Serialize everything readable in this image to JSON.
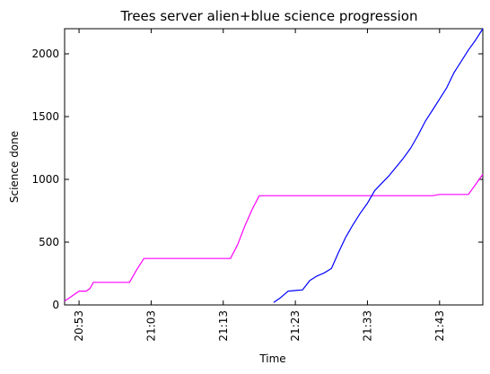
{
  "chart_data": {
    "type": "line",
    "title": "Trees server alien+blue science progression",
    "xlabel": "Time",
    "ylabel": "Science done",
    "x_unit": "clock time (hh:mm)",
    "xlim": [
      "20:51",
      "21:49"
    ],
    "ylim": [
      0,
      2200
    ],
    "x_ticks": [
      "20:53",
      "21:03",
      "21:13",
      "21:23",
      "21:33",
      "21:43"
    ],
    "y_ticks": [
      0,
      500,
      1000,
      1500,
      2000
    ],
    "grid": false,
    "legend": "none",
    "series": [
      {
        "color": "#ff00ff",
        "points": [
          [
            "20:51",
            30
          ],
          [
            "20:52",
            70
          ],
          [
            "20:53",
            110
          ],
          [
            "20:54",
            110
          ],
          [
            "20:54:30",
            130
          ],
          [
            "20:55",
            180
          ],
          [
            "20:57",
            180
          ],
          [
            "21:00",
            180
          ],
          [
            "21:01",
            280
          ],
          [
            "21:02",
            370
          ],
          [
            "21:05",
            370
          ],
          [
            "21:10",
            370
          ],
          [
            "21:14",
            370
          ],
          [
            "21:15",
            480
          ],
          [
            "21:16",
            630
          ],
          [
            "21:17",
            760
          ],
          [
            "21:18",
            870
          ],
          [
            "21:25",
            870
          ],
          [
            "21:35",
            870
          ],
          [
            "21:42",
            870
          ],
          [
            "21:43",
            880
          ],
          [
            "21:47",
            880
          ],
          [
            "21:48",
            960
          ],
          [
            "21:49",
            1040
          ]
        ]
      },
      {
        "color": "#0000ff",
        "points": [
          [
            "21:20",
            20
          ],
          [
            "21:21",
            60
          ],
          [
            "21:22",
            110
          ],
          [
            "21:23",
            115
          ],
          [
            "21:24",
            120
          ],
          [
            "21:25",
            195
          ],
          [
            "21:26",
            230
          ],
          [
            "21:27",
            255
          ],
          [
            "21:28",
            290
          ],
          [
            "21:29",
            420
          ],
          [
            "21:30",
            540
          ],
          [
            "21:31",
            640
          ],
          [
            "21:32",
            730
          ],
          [
            "21:33",
            810
          ],
          [
            "21:34",
            910
          ],
          [
            "21:35",
            970
          ],
          [
            "21:36",
            1030
          ],
          [
            "21:37",
            1100
          ],
          [
            "21:38",
            1170
          ],
          [
            "21:39",
            1250
          ],
          [
            "21:40",
            1350
          ],
          [
            "21:41",
            1460
          ],
          [
            "21:42",
            1550
          ],
          [
            "21:43",
            1640
          ],
          [
            "21:44",
            1730
          ],
          [
            "21:45",
            1850
          ],
          [
            "21:46",
            1940
          ],
          [
            "21:47",
            2030
          ],
          [
            "21:48",
            2110
          ],
          [
            "21:49",
            2200
          ]
        ]
      }
    ]
  }
}
